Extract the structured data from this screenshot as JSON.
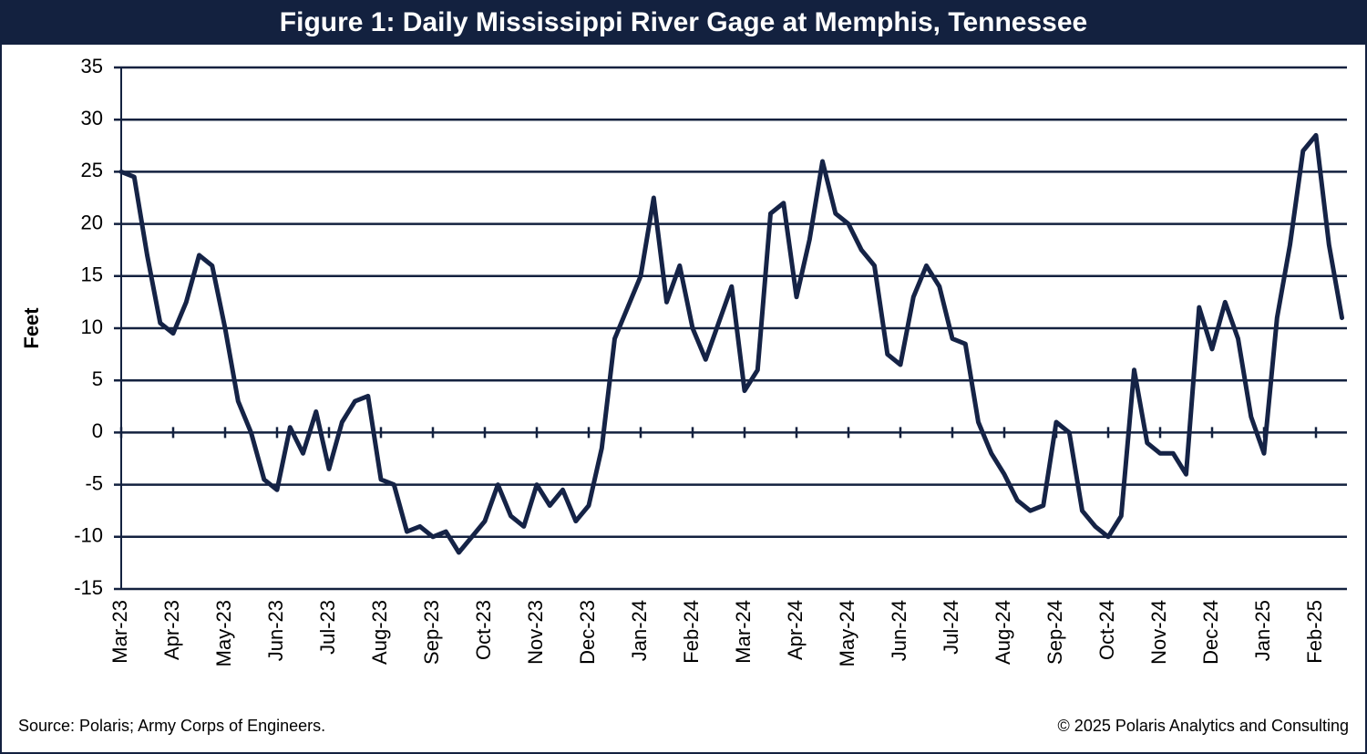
{
  "chart_data": {
    "type": "line",
    "title": "Figure 1: Daily Mississippi River Gage at Memphis, Tennessee",
    "y_label": "Feet",
    "source": "Source: Polaris; Army Corps of Engineers.",
    "copyright": "© 2025 Polaris Analytics and Consulting",
    "categories": [
      "Mar-23",
      null,
      null,
      null,
      "Apr-23",
      null,
      null,
      null,
      "May-23",
      null,
      null,
      null,
      "Jun-23",
      null,
      null,
      null,
      "Jul-23",
      null,
      null,
      null,
      "Aug-23",
      null,
      null,
      null,
      "Sep-23",
      null,
      null,
      null,
      "Oct-23",
      null,
      null,
      null,
      "Nov-23",
      null,
      null,
      null,
      "Dec-23",
      null,
      null,
      null,
      "Jan-24",
      null,
      null,
      null,
      "Feb-24",
      null,
      null,
      null,
      "Mar-24",
      null,
      null,
      null,
      "Apr-24",
      null,
      null,
      null,
      "May-24",
      null,
      null,
      null,
      "Jun-24",
      null,
      null,
      null,
      "Jul-24",
      null,
      null,
      null,
      "Aug-24",
      null,
      null,
      null,
      "Sep-24",
      null,
      null,
      null,
      "Oct-24",
      null,
      null,
      null,
      "Nov-24",
      null,
      null,
      null,
      "Dec-24",
      null,
      null,
      null,
      "Jan-25",
      null,
      null,
      null,
      "Feb-25",
      null,
      null
    ],
    "series": [
      {
        "name": "Gage",
        "color": "#152346",
        "values": [
          25,
          24.5,
          17,
          10.5,
          9.5,
          12.5,
          17,
          16,
          10,
          3,
          0,
          -4.5,
          -5.5,
          0.5,
          -2,
          2,
          -3.5,
          1,
          3,
          3.5,
          -4.5,
          -5,
          -9.5,
          -9,
          -10,
          -9.5,
          -11.5,
          -10,
          -8.5,
          -5,
          -8,
          -9,
          -5,
          -7,
          -5.5,
          -8.5,
          -7,
          -1.5,
          9,
          12,
          15,
          22.5,
          12.5,
          16,
          10,
          7,
          10.5,
          14,
          4,
          6,
          21,
          22,
          13,
          18.5,
          26,
          21,
          20,
          17.5,
          16,
          7.5,
          6.5,
          13,
          16,
          14,
          9,
          8.5,
          1,
          -2,
          -4,
          -6.5,
          -7.5,
          -7,
          1,
          0,
          -7.5,
          -9,
          -10,
          -8,
          6,
          -1,
          -2,
          -2,
          -4,
          12,
          8,
          12.5,
          9,
          1.5,
          -2,
          11,
          18,
          27,
          28.5,
          18,
          11
        ]
      }
    ],
    "ylim": [
      -15,
      35
    ],
    "yticks": [
      -15,
      -10,
      -5,
      0,
      5,
      10,
      15,
      20,
      25,
      30,
      35
    ],
    "grid": true
  }
}
